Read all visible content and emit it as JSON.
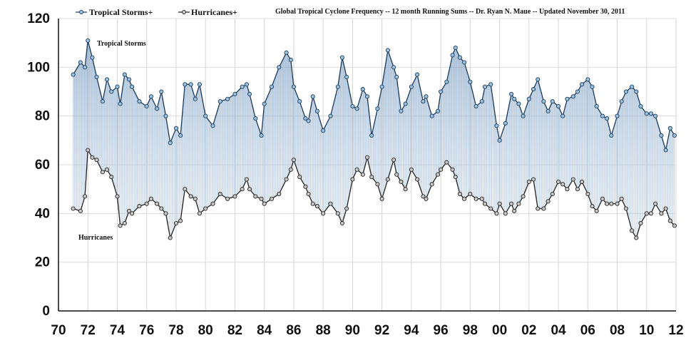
{
  "chart_data": {
    "type": "line",
    "title": "Global Tropical Cyclone Frequency -- 12 month Running Sums -- Dr. Ryan N. Maue -- Updated November 30, 2011",
    "xlabel": "",
    "ylabel": "",
    "xlim": [
      70,
      12
    ],
    "ylim": [
      0,
      120
    ],
    "x_tick_labels": [
      "70",
      "72",
      "74",
      "76",
      "78",
      "80",
      "82",
      "84",
      "86",
      "88",
      "90",
      "92",
      "94",
      "96",
      "98",
      "00",
      "02",
      "04",
      "06",
      "08",
      "10",
      "12"
    ],
    "y_tick_labels": [
      "0",
      "20",
      "40",
      "60",
      "80",
      "100",
      "120"
    ],
    "grid": true,
    "legend_position": "top-left",
    "legend": [
      "Tropical Storms+",
      "Hurricanes+"
    ],
    "annotations": [
      "Tropical Storms",
      "Hurricanes"
    ],
    "fill_between_series": true,
    "series": [
      {
        "name": "Tropical Storms+",
        "color": "#1a3a5c",
        "marker_fill": "#9ec3de",
        "x": [
          1971.0,
          1971.5,
          1971.8,
          1972.0,
          1972.3,
          1972.6,
          1973.0,
          1973.3,
          1973.6,
          1974.0,
          1974.2,
          1974.5,
          1974.8,
          1975.0,
          1975.5,
          1976.0,
          1976.3,
          1976.7,
          1977.0,
          1977.3,
          1977.6,
          1978.0,
          1978.3,
          1978.6,
          1979.0,
          1979.3,
          1979.6,
          1980.0,
          1980.5,
          1981.0,
          1981.5,
          1982.0,
          1982.5,
          1982.8,
          1983.0,
          1983.4,
          1983.8,
          1984.0,
          1984.5,
          1985.0,
          1985.5,
          1985.8,
          1986.0,
          1986.4,
          1986.8,
          1987.0,
          1987.3,
          1987.6,
          1988.0,
          1988.5,
          1989.0,
          1989.3,
          1989.6,
          1990.0,
          1990.3,
          1990.7,
          1991.0,
          1991.3,
          1991.7,
          1992.0,
          1992.4,
          1992.8,
          1993.0,
          1993.3,
          1993.6,
          1994.0,
          1994.4,
          1994.8,
          1995.0,
          1995.4,
          1995.8,
          1996.0,
          1996.4,
          1996.8,
          1997.0,
          1997.3,
          1997.6,
          1998.0,
          1998.4,
          1998.8,
          1999.0,
          1999.4,
          1999.8,
          2000.0,
          2000.4,
          2000.8,
          2001.0,
          2001.3,
          2001.6,
          2002.0,
          2002.3,
          2002.6,
          2003.0,
          2003.3,
          2003.6,
          2004.0,
          2004.3,
          2004.6,
          2005.0,
          2005.3,
          2005.6,
          2006.0,
          2006.3,
          2006.6,
          2007.0,
          2007.3,
          2007.6,
          2008.0,
          2008.3,
          2008.6,
          2009.0,
          2009.3,
          2009.6,
          2010.0,
          2010.3,
          2010.6,
          2011.0,
          2011.3,
          2011.6,
          2011.9
        ],
        "y": [
          97,
          102,
          100,
          111,
          104,
          96,
          86,
          95,
          90,
          92,
          85,
          97,
          95,
          92,
          86,
          84,
          88,
          83,
          90,
          80,
          69,
          75,
          72,
          93,
          93,
          87,
          93,
          80,
          76,
          86,
          87,
          89,
          92,
          93,
          89,
          79,
          72,
          85,
          92,
          100,
          106,
          103,
          92,
          86,
          79,
          78,
          88,
          82,
          74,
          80,
          92,
          104,
          96,
          84,
          83,
          91,
          88,
          72,
          83,
          92,
          107,
          100,
          96,
          82,
          85,
          92,
          97,
          86,
          88,
          80,
          82,
          90,
          94,
          105,
          108,
          104,
          102,
          94,
          84,
          86,
          92,
          93,
          76,
          70,
          77,
          89,
          87,
          85,
          80,
          87,
          91,
          95,
          86,
          82,
          86,
          84,
          80,
          87,
          88,
          90,
          93,
          95,
          92,
          84,
          80,
          79,
          72,
          80,
          86,
          90,
          92,
          90,
          84,
          81,
          81,
          80,
          72,
          66,
          75,
          72
        ]
      },
      {
        "name": "Hurricanes+",
        "color": "#222222",
        "marker_fill": "#c8c8c8",
        "x": [
          1971.0,
          1971.5,
          1971.8,
          1972.0,
          1972.3,
          1972.6,
          1973.0,
          1973.3,
          1973.6,
          1974.0,
          1974.2,
          1974.5,
          1974.8,
          1975.0,
          1975.5,
          1976.0,
          1976.3,
          1976.7,
          1977.0,
          1977.3,
          1977.6,
          1978.0,
          1978.3,
          1978.6,
          1979.0,
          1979.3,
          1979.6,
          1980.0,
          1980.5,
          1981.0,
          1981.5,
          1982.0,
          1982.5,
          1982.8,
          1983.0,
          1983.4,
          1983.8,
          1984.0,
          1984.5,
          1985.0,
          1985.5,
          1985.8,
          1986.0,
          1986.4,
          1986.8,
          1987.0,
          1987.3,
          1987.6,
          1988.0,
          1988.5,
          1989.0,
          1989.3,
          1989.6,
          1990.0,
          1990.3,
          1990.7,
          1991.0,
          1991.3,
          1991.7,
          1992.0,
          1992.4,
          1992.8,
          1993.0,
          1993.3,
          1993.6,
          1994.0,
          1994.4,
          1994.8,
          1995.0,
          1995.4,
          1995.8,
          1996.0,
          1996.4,
          1996.8,
          1997.0,
          1997.3,
          1997.6,
          1998.0,
          1998.4,
          1998.8,
          1999.0,
          1999.4,
          1999.8,
          2000.0,
          2000.4,
          2000.8,
          2001.0,
          2001.3,
          2001.6,
          2002.0,
          2002.3,
          2002.6,
          2003.0,
          2003.3,
          2003.6,
          2004.0,
          2004.3,
          2004.6,
          2005.0,
          2005.3,
          2005.6,
          2006.0,
          2006.3,
          2006.6,
          2007.0,
          2007.3,
          2007.6,
          2008.0,
          2008.3,
          2008.6,
          2009.0,
          2009.3,
          2009.6,
          2010.0,
          2010.3,
          2010.6,
          2011.0,
          2011.3,
          2011.6,
          2011.9
        ],
        "y": [
          42,
          41,
          47,
          66,
          63,
          62,
          57,
          58,
          55,
          47,
          35,
          36,
          41,
          40,
          43,
          44,
          46,
          44,
          42,
          40,
          30,
          36,
          37,
          50,
          47,
          46,
          40,
          42,
          44,
          48,
          46,
          47,
          50,
          54,
          50,
          47,
          46,
          44,
          46,
          48,
          54,
          58,
          62,
          55,
          51,
          48,
          44,
          43,
          40,
          44,
          40,
          36,
          42,
          54,
          58,
          56,
          63,
          55,
          52,
          46,
          54,
          62,
          56,
          53,
          50,
          58,
          54,
          47,
          46,
          52,
          56,
          58,
          61,
          58,
          55,
          48,
          46,
          48,
          46,
          46,
          44,
          42,
          40,
          44,
          40,
          44,
          41,
          44,
          47,
          53,
          54,
          42,
          42,
          45,
          48,
          53,
          52,
          50,
          54,
          50,
          53,
          48,
          43,
          41,
          46,
          44,
          44,
          44,
          46,
          42,
          33,
          30,
          36,
          40,
          40,
          44,
          40,
          42,
          37,
          35
        ]
      }
    ]
  }
}
